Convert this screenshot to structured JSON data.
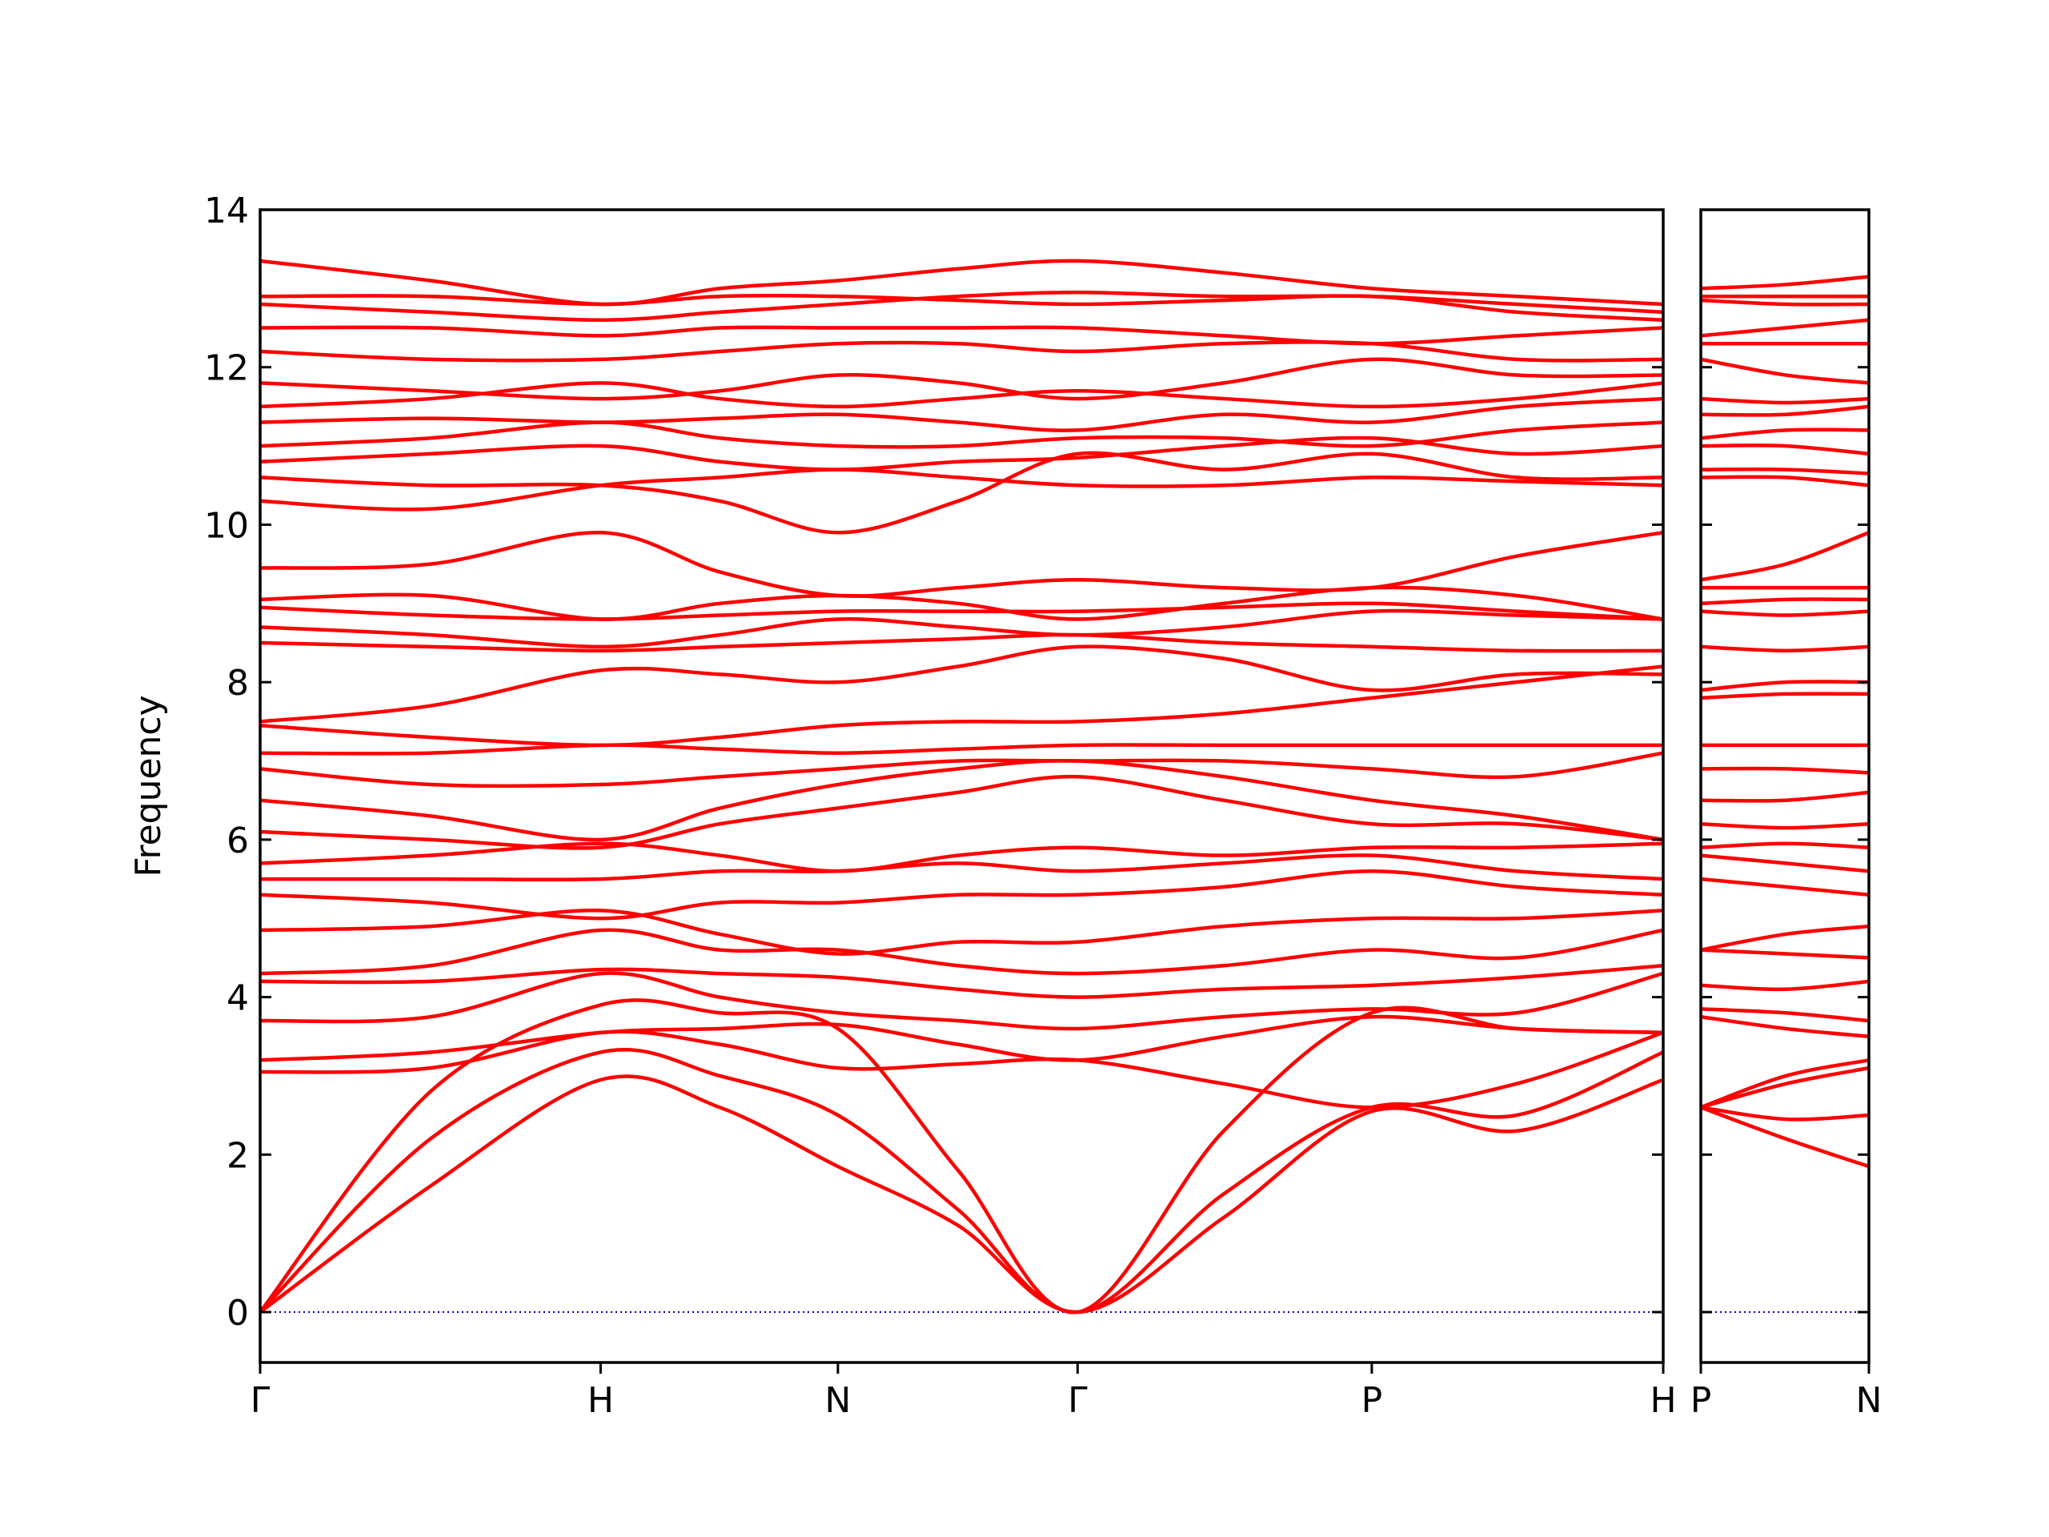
{
  "chart_data": [
    {
      "type": "line",
      "ylabel": "Frequency",
      "color": "#ff0000",
      "hline": 0,
      "hline_color": "#0000cc",
      "x": [
        0,
        0.5,
        1,
        1.35,
        1.697,
        2.05,
        2.401,
        2.83,
        3.265,
        3.69,
        4.121
      ],
      "xlim": [
        0,
        4.121
      ],
      "xticks": [
        {
          "value": 0,
          "label": "Γ"
        },
        {
          "value": 1,
          "label": "H"
        },
        {
          "value": 1.697,
          "label": "N"
        },
        {
          "value": 2.401,
          "label": "Γ"
        },
        {
          "value": 3.265,
          "label": "P"
        },
        {
          "value": 4.121,
          "label": "H"
        }
      ],
      "ylim": [
        -0.64,
        14
      ],
      "yticks": [
        0,
        2,
        4,
        6,
        8,
        10,
        12,
        14
      ],
      "series": [
        {
          "values": [
            0,
            1.6,
            2.95,
            2.6,
            1.85,
            1.1,
            0,
            1.2,
            2.55,
            2.3,
            2.95
          ]
        },
        {
          "values": [
            0,
            2.2,
            3.3,
            3.0,
            2.5,
            1.3,
            0,
            1.5,
            2.6,
            2.5,
            3.3
          ]
        },
        {
          "values": [
            0,
            2.8,
            3.9,
            3.8,
            3.6,
            1.8,
            0,
            2.3,
            3.8,
            3.6,
            3.55
          ]
        },
        {
          "values": [
            3.05,
            3.1,
            3.55,
            3.4,
            3.1,
            3.15,
            3.2,
            2.9,
            2.6,
            2.9,
            3.55
          ]
        },
        {
          "values": [
            3.2,
            3.3,
            3.55,
            3.6,
            3.65,
            3.4,
            3.2,
            3.5,
            3.75,
            3.6,
            3.55
          ]
        },
        {
          "values": [
            3.7,
            3.75,
            4.3,
            4.0,
            3.8,
            3.7,
            3.6,
            3.75,
            3.85,
            3.8,
            4.3
          ]
        },
        {
          "values": [
            4.2,
            4.2,
            4.35,
            4.3,
            4.25,
            4.1,
            4.0,
            4.1,
            4.15,
            4.25,
            4.4
          ]
        },
        {
          "values": [
            4.3,
            4.4,
            4.85,
            4.6,
            4.6,
            4.4,
            4.3,
            4.4,
            4.6,
            4.5,
            4.85
          ]
        },
        {
          "values": [
            4.85,
            4.9,
            5.1,
            4.8,
            4.55,
            4.7,
            4.7,
            4.9,
            5.0,
            5.0,
            5.1
          ]
        },
        {
          "values": [
            5.3,
            5.2,
            5.0,
            5.2,
            5.2,
            5.3,
            5.3,
            5.4,
            5.6,
            5.4,
            5.3
          ]
        },
        {
          "values": [
            5.5,
            5.5,
            5.5,
            5.6,
            5.6,
            5.7,
            5.6,
            5.7,
            5.8,
            5.6,
            5.5
          ]
        },
        {
          "values": [
            5.7,
            5.8,
            5.95,
            5.8,
            5.6,
            5.8,
            5.9,
            5.8,
            5.9,
            5.9,
            5.95
          ]
        },
        {
          "values": [
            6.1,
            6.0,
            5.9,
            6.2,
            6.4,
            6.6,
            6.8,
            6.5,
            6.2,
            6.2,
            6.0
          ]
        },
        {
          "values": [
            6.5,
            6.3,
            6.0,
            6.4,
            6.7,
            6.9,
            7.0,
            6.8,
            6.5,
            6.3,
            6.0
          ]
        },
        {
          "values": [
            6.9,
            6.7,
            6.7,
            6.8,
            6.9,
            7.0,
            7.0,
            7.0,
            6.9,
            6.8,
            7.1
          ]
        },
        {
          "values": [
            7.1,
            7.1,
            7.2,
            7.15,
            7.1,
            7.15,
            7.2,
            7.2,
            7.2,
            7.2,
            7.2
          ]
        },
        {
          "values": [
            7.45,
            7.3,
            7.2,
            7.3,
            7.45,
            7.5,
            7.5,
            7.6,
            7.8,
            8.0,
            8.2
          ]
        },
        {
          "values": [
            7.5,
            7.7,
            8.15,
            8.1,
            8.0,
            8.2,
            8.45,
            8.3,
            7.9,
            8.1,
            8.1
          ]
        },
        {
          "values": [
            8.5,
            8.45,
            8.4,
            8.45,
            8.5,
            8.55,
            8.6,
            8.5,
            8.45,
            8.4,
            8.4
          ]
        },
        {
          "values": [
            8.7,
            8.6,
            8.45,
            8.6,
            8.8,
            8.7,
            8.6,
            8.7,
            8.9,
            8.85,
            8.8
          ]
        },
        {
          "values": [
            8.95,
            8.85,
            8.8,
            8.85,
            8.9,
            8.9,
            8.9,
            8.95,
            9.0,
            8.9,
            8.8
          ]
        },
        {
          "values": [
            9.05,
            9.1,
            8.8,
            9.0,
            9.1,
            9.0,
            8.8,
            9.0,
            9.2,
            9.1,
            8.8
          ]
        },
        {
          "values": [
            9.45,
            9.5,
            9.9,
            9.4,
            9.1,
            9.2,
            9.3,
            9.2,
            9.2,
            9.6,
            9.9
          ]
        },
        {
          "values": [
            10.3,
            10.2,
            10.5,
            10.6,
            10.7,
            10.6,
            10.5,
            10.5,
            10.6,
            10.55,
            10.5
          ]
        },
        {
          "values": [
            10.6,
            10.5,
            10.5,
            10.3,
            9.9,
            10.3,
            10.9,
            10.7,
            10.9,
            10.6,
            10.6
          ]
        },
        {
          "values": [
            10.8,
            10.9,
            11.0,
            10.8,
            10.7,
            10.8,
            10.85,
            11.0,
            11.1,
            10.9,
            11.0
          ]
        },
        {
          "values": [
            11.0,
            11.1,
            11.3,
            11.1,
            11.0,
            11.0,
            11.1,
            11.1,
            11.0,
            11.2,
            11.3
          ]
        },
        {
          "values": [
            11.3,
            11.35,
            11.3,
            11.35,
            11.4,
            11.3,
            11.2,
            11.4,
            11.3,
            11.5,
            11.6
          ]
        },
        {
          "values": [
            11.5,
            11.6,
            11.8,
            11.6,
            11.5,
            11.6,
            11.7,
            11.6,
            11.5,
            11.6,
            11.8
          ]
        },
        {
          "values": [
            11.8,
            11.7,
            11.6,
            11.7,
            11.9,
            11.8,
            11.6,
            11.8,
            12.1,
            11.9,
            11.9
          ]
        },
        {
          "values": [
            12.2,
            12.1,
            12.1,
            12.2,
            12.3,
            12.3,
            12.2,
            12.3,
            12.3,
            12.1,
            12.1
          ]
        },
        {
          "values": [
            12.5,
            12.5,
            12.4,
            12.5,
            12.5,
            12.5,
            12.5,
            12.4,
            12.3,
            12.4,
            12.5
          ]
        },
        {
          "values": [
            12.8,
            12.7,
            12.6,
            12.7,
            12.8,
            12.9,
            12.95,
            12.9,
            12.9,
            12.8,
            12.7
          ]
        },
        {
          "values": [
            13.35,
            13.1,
            12.8,
            13.0,
            13.1,
            13.25,
            13.35,
            13.2,
            13.0,
            12.9,
            12.8
          ]
        },
        {
          "values": [
            12.9,
            12.9,
            12.8,
            12.9,
            12.9,
            12.85,
            12.8,
            12.85,
            12.9,
            12.7,
            12.6
          ]
        }
      ]
    },
    {
      "type": "line",
      "color": "#ff0000",
      "hline": 0,
      "hline_color": "#0000cc",
      "x": [
        0,
        0.25,
        0.494
      ],
      "xlim": [
        0,
        0.494
      ],
      "xticks": [
        {
          "value": 0,
          "label": "P"
        },
        {
          "value": 0.494,
          "label": "N"
        }
      ],
      "ylim": [
        -0.64,
        14
      ],
      "yticks": [
        0,
        2,
        4,
        6,
        8,
        10,
        12,
        14
      ],
      "series": [
        {
          "values": [
            2.6,
            2.2,
            1.85
          ]
        },
        {
          "values": [
            2.6,
            2.45,
            2.5
          ]
        },
        {
          "values": [
            2.6,
            2.9,
            3.1
          ]
        },
        {
          "values": [
            2.6,
            3.0,
            3.2
          ]
        },
        {
          "values": [
            3.75,
            3.6,
            3.5
          ]
        },
        {
          "values": [
            3.85,
            3.8,
            3.7
          ]
        },
        {
          "values": [
            4.15,
            4.1,
            4.2
          ]
        },
        {
          "values": [
            4.6,
            4.55,
            4.5
          ]
        },
        {
          "values": [
            4.6,
            4.8,
            4.9
          ]
        },
        {
          "values": [
            5.5,
            5.4,
            5.3
          ]
        },
        {
          "values": [
            5.8,
            5.7,
            5.6
          ]
        },
        {
          "values": [
            5.9,
            5.95,
            5.9
          ]
        },
        {
          "values": [
            6.2,
            6.15,
            6.2
          ]
        },
        {
          "values": [
            6.5,
            6.5,
            6.6
          ]
        },
        {
          "values": [
            6.9,
            6.9,
            6.85
          ]
        },
        {
          "values": [
            7.2,
            7.2,
            7.2
          ]
        },
        {
          "values": [
            7.8,
            7.85,
            7.85
          ]
        },
        {
          "values": [
            7.9,
            8.0,
            8.0
          ]
        },
        {
          "values": [
            8.45,
            8.4,
            8.45
          ]
        },
        {
          "values": [
            8.9,
            8.85,
            8.9
          ]
        },
        {
          "values": [
            9.0,
            9.05,
            9.05
          ]
        },
        {
          "values": [
            9.2,
            9.2,
            9.2
          ]
        },
        {
          "values": [
            9.3,
            9.5,
            9.9
          ]
        },
        {
          "values": [
            10.6,
            10.6,
            10.5
          ]
        },
        {
          "values": [
            10.7,
            10.7,
            10.65
          ]
        },
        {
          "values": [
            11.0,
            11.0,
            10.9
          ]
        },
        {
          "values": [
            11.1,
            11.2,
            11.2
          ]
        },
        {
          "values": [
            11.4,
            11.4,
            11.5
          ]
        },
        {
          "values": [
            11.6,
            11.55,
            11.6
          ]
        },
        {
          "values": [
            12.1,
            11.9,
            11.8
          ]
        },
        {
          "values": [
            12.3,
            12.3,
            12.3
          ]
        },
        {
          "values": [
            12.4,
            12.5,
            12.6
          ]
        },
        {
          "values": [
            12.9,
            12.9,
            12.9
          ]
        },
        {
          "values": [
            13.0,
            13.05,
            13.15
          ]
        },
        {
          "values": [
            12.85,
            12.8,
            12.8
          ]
        }
      ]
    }
  ]
}
